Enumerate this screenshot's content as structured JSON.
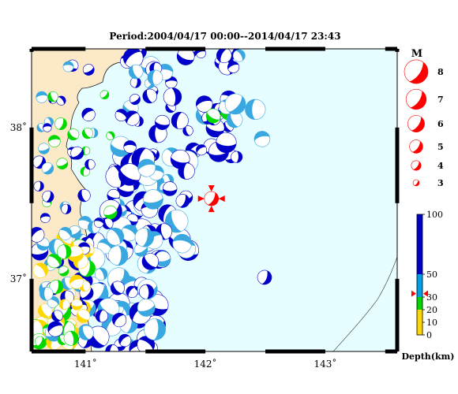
{
  "title": "Period:2004/04/17 00:00--2014/04/17 23:43",
  "map": {
    "lon_range": [
      140.55,
      143.6
    ],
    "lat_range": [
      36.52,
      38.52
    ],
    "lon_ticks": [
      {
        "value": 141,
        "label": "141˚"
      },
      {
        "value": 142,
        "label": "142˚"
      },
      {
        "value": 143,
        "label": "143˚"
      }
    ],
    "lat_ticks": [
      {
        "value": 37,
        "label": "37˚"
      },
      {
        "value": 38,
        "label": "38˚"
      }
    ],
    "colors": {
      "land": "#fbe9c8",
      "sea": "#e6feff",
      "coastline": "#000000",
      "frame": "#000000",
      "tension": "#ffffff"
    },
    "featured_event": {
      "lon": 142.05,
      "lat": 37.53,
      "color": "#ff0000",
      "magnitude": 5.2,
      "marker_color": "#ff0000"
    }
  },
  "magnitude_legend": {
    "title": "M",
    "color": "#ff0000",
    "items": [
      {
        "mag": 8,
        "label": "8"
      },
      {
        "mag": 7,
        "label": "7"
      },
      {
        "mag": 6,
        "label": "6"
      },
      {
        "mag": 5,
        "label": "5"
      },
      {
        "mag": 4,
        "label": "4"
      },
      {
        "mag": 3,
        "label": "3"
      }
    ]
  },
  "depth_legend": {
    "title": "Depth(km)",
    "bands": [
      {
        "from": 0,
        "to": 10,
        "color": "#ffd700"
      },
      {
        "from": 10,
        "to": 20,
        "color": "#ffd700"
      },
      {
        "from": 20,
        "to": 30,
        "color": "#00d800"
      },
      {
        "from": 30,
        "to": 50,
        "color": "#00a0e8"
      },
      {
        "from": 50,
        "to": 100,
        "color": "#0000c8"
      }
    ],
    "tick_labels": [
      {
        "value": 100,
        "label": "100"
      },
      {
        "value": 50,
        "label": "50"
      },
      {
        "value": 30,
        "label": "30"
      },
      {
        "value": 20,
        "label": "20"
      },
      {
        "value": 10,
        "label": "10"
      },
      {
        "value": 0,
        "label": "0"
      }
    ],
    "marker_depth": 33,
    "marker_color": "#ff0000"
  },
  "depth_colors": {
    "yellow": "#ffd700",
    "green": "#00d800",
    "cyan": "#3aa8e0",
    "blue": "#0000c8"
  }
}
